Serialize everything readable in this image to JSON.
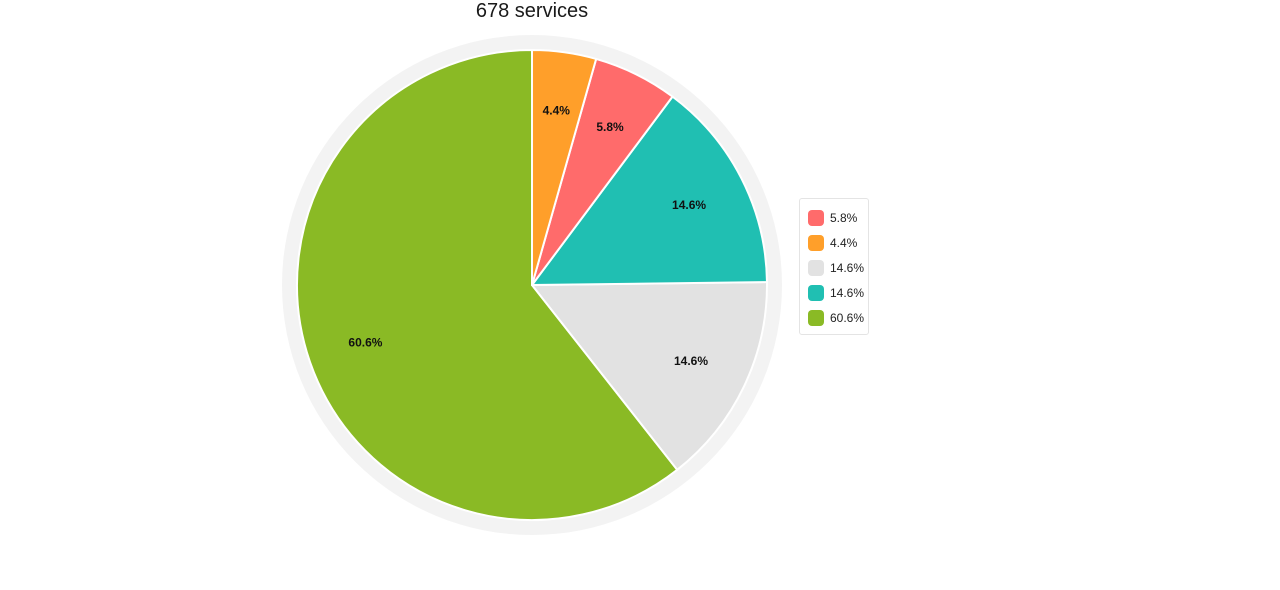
{
  "chart_data": {
    "type": "pie",
    "title": "678 services",
    "start_angle_deg": 0,
    "direction": "counterclockwise",
    "slices": [
      {
        "label": "60.6%",
        "value": 60.6,
        "color": "#8aba25"
      },
      {
        "label": "14.6%",
        "value": 14.6,
        "color": "#e2e2e2"
      },
      {
        "label": "14.6%",
        "value": 14.6,
        "color": "#20bfb2"
      },
      {
        "label": "5.8%",
        "value": 5.8,
        "color": "#ff6b6b"
      },
      {
        "label": "4.4%",
        "value": 4.4,
        "color": "#ff9f2a"
      }
    ],
    "legend": {
      "position": "right",
      "items": [
        {
          "label": "5.8%",
          "color": "#ff6b6b"
        },
        {
          "label": "4.4%",
          "color": "#ff9f2a"
        },
        {
          "label": "14.6%",
          "color": "#e2e2e2"
        },
        {
          "label": "14.6%",
          "color": "#20bfb2"
        },
        {
          "label": "60.6%",
          "color": "#8aba25"
        }
      ]
    },
    "ring_color": "#f3f3f3"
  }
}
